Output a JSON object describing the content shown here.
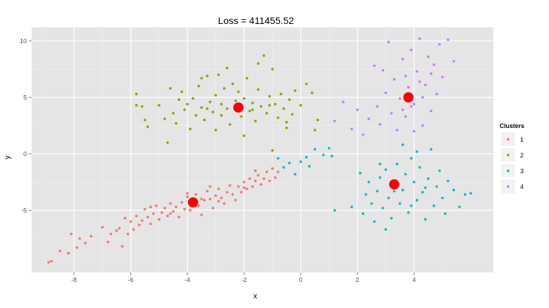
{
  "chart_data": {
    "type": "scatter",
    "title": "Loss = 411455.52",
    "xlabel": "x",
    "ylabel": "y",
    "xlim": [
      -9.5,
      6.8
    ],
    "ylim": [
      -10.5,
      11.2
    ],
    "x_ticks": [
      -8,
      -6,
      -4,
      -2,
      0,
      2,
      4
    ],
    "x_tick_labels": [
      "-8",
      "-6",
      "-4",
      "-2",
      "0",
      "2",
      "4"
    ],
    "y_ticks": [
      -5,
      0,
      5,
      10
    ],
    "y_tick_labels": [
      "-5",
      "0",
      "5",
      "10"
    ],
    "grid": true,
    "legend": {
      "title": "Clusters",
      "position": "right",
      "entries": [
        "1",
        "2",
        "3",
        "4"
      ]
    },
    "colors": {
      "1": "#F8766D",
      "2": "#7CAE00",
      "3": "#00BFC4",
      "4": "#C77CFF",
      "centroid": "#FF0000",
      "panel": "#E5E5E5",
      "grid": "#FFFFFF"
    },
    "centroids": [
      {
        "cluster": "1",
        "x": -3.8,
        "y": -4.3
      },
      {
        "cluster": "2",
        "x": -2.2,
        "y": 4.1
      },
      {
        "cluster": "3",
        "x": 3.3,
        "y": -2.7
      },
      {
        "cluster": "4",
        "x": 3.8,
        "y": 5.0
      }
    ],
    "series": [
      {
        "name": "1",
        "points": [
          [
            -8.9,
            -9.6
          ],
          [
            -8.8,
            -9.5
          ],
          [
            -8.5,
            -8.6
          ],
          [
            -8.2,
            -8.8
          ],
          [
            -8.1,
            -7.1
          ],
          [
            -7.9,
            -8.3
          ],
          [
            -7.8,
            -7.5
          ],
          [
            -7.6,
            -7.9
          ],
          [
            -7.4,
            -7.3
          ],
          [
            -7.0,
            -6.5
          ],
          [
            -6.8,
            -7.8
          ],
          [
            -6.7,
            -7.1
          ],
          [
            -6.5,
            -6.8
          ],
          [
            -6.4,
            -6.6
          ],
          [
            -6.3,
            -8.2
          ],
          [
            -6.2,
            -5.7
          ],
          [
            -6.1,
            -7.1
          ],
          [
            -6.0,
            -6.0
          ],
          [
            -5.9,
            -6.7
          ],
          [
            -5.8,
            -5.5
          ],
          [
            -5.7,
            -6.3
          ],
          [
            -5.6,
            -5.9
          ],
          [
            -5.5,
            -4.9
          ],
          [
            -5.4,
            -5.6
          ],
          [
            -5.3,
            -6.2
          ],
          [
            -5.2,
            -5.3
          ],
          [
            -5.1,
            -4.6
          ],
          [
            -5.0,
            -5.8
          ],
          [
            -4.9,
            -5.2
          ],
          [
            -4.8,
            -4.8
          ],
          [
            -4.7,
            -5.5
          ],
          [
            -4.6,
            -4.4
          ],
          [
            -4.5,
            -5.1
          ],
          [
            -4.4,
            -4.7
          ],
          [
            -4.3,
            -5.6
          ],
          [
            -4.2,
            -4.3
          ],
          [
            -4.1,
            -4.9
          ],
          [
            -4.0,
            -3.8
          ],
          [
            -3.9,
            -5.0
          ],
          [
            -3.8,
            -4.5
          ],
          [
            -3.7,
            -3.6
          ],
          [
            -3.6,
            -4.6
          ],
          [
            -3.5,
            -5.4
          ],
          [
            -3.4,
            -4.1
          ],
          [
            -3.3,
            -3.3
          ],
          [
            -3.2,
            -4.0
          ],
          [
            -3.1,
            -4.8
          ],
          [
            -3.0,
            -3.7
          ],
          [
            -2.9,
            -3.1
          ],
          [
            -2.8,
            -3.9
          ],
          [
            -2.7,
            -4.4
          ],
          [
            -2.6,
            -3.4
          ],
          [
            -2.5,
            -2.8
          ],
          [
            -2.4,
            -3.6
          ],
          [
            -2.3,
            -4.1
          ],
          [
            -2.2,
            -2.9
          ],
          [
            -2.1,
            -3.4
          ],
          [
            -2.0,
            -2.5
          ],
          [
            -1.9,
            -3.1
          ],
          [
            -1.8,
            -2.2
          ],
          [
            -1.7,
            -2.9
          ],
          [
            -1.6,
            -2.4
          ],
          [
            -1.5,
            -1.9
          ],
          [
            -1.4,
            -2.7
          ],
          [
            -1.3,
            -2.2
          ],
          [
            -1.2,
            -1.6
          ],
          [
            -1.1,
            -2.4
          ],
          [
            -1.0,
            -1.3
          ],
          [
            -0.9,
            -2.1
          ],
          [
            -0.8,
            -1.6
          ],
          [
            -3.5,
            -4.0
          ],
          [
            -2.9,
            -4.2
          ],
          [
            -4.6,
            -5.3
          ],
          [
            -5.3,
            -4.7
          ],
          [
            -2.0,
            -3.0
          ],
          [
            -1.6,
            -1.5
          ],
          [
            -4.0,
            -3.5
          ],
          [
            -3.2,
            -2.9
          ]
        ]
      },
      {
        "name": "2",
        "points": [
          [
            -5.8,
            5.3
          ],
          [
            -5.8,
            4.3
          ],
          [
            -5.6,
            4.2
          ],
          [
            -5.5,
            3.0
          ],
          [
            -5.4,
            2.4
          ],
          [
            -5.0,
            4.3
          ],
          [
            -4.8,
            3.1
          ],
          [
            -4.6,
            5.8
          ],
          [
            -4.5,
            3.6
          ],
          [
            -4.4,
            2.7
          ],
          [
            -4.3,
            4.8
          ],
          [
            -4.2,
            5.5
          ],
          [
            -4.1,
            3.9
          ],
          [
            -4.0,
            4.4
          ],
          [
            -3.9,
            2.2
          ],
          [
            -3.8,
            4.9
          ],
          [
            -3.7,
            3.4
          ],
          [
            -3.6,
            6.0
          ],
          [
            -3.5,
            4.1
          ],
          [
            -3.4,
            3.0
          ],
          [
            -3.3,
            6.9
          ],
          [
            -3.2,
            4.6
          ],
          [
            -3.1,
            3.7
          ],
          [
            -3.0,
            5.2
          ],
          [
            -2.9,
            7.0
          ],
          [
            -2.8,
            3.4
          ],
          [
            -2.7,
            5.8
          ],
          [
            -2.6,
            4.0
          ],
          [
            -2.5,
            2.6
          ],
          [
            -2.4,
            6.2
          ],
          [
            -2.3,
            4.7
          ],
          [
            -2.2,
            5.5
          ],
          [
            -2.1,
            3.3
          ],
          [
            -2.0,
            4.9
          ],
          [
            -1.9,
            6.7
          ],
          [
            -1.8,
            3.8
          ],
          [
            -1.7,
            4.5
          ],
          [
            -1.6,
            2.9
          ],
          [
            -1.5,
            5.7
          ],
          [
            -1.4,
            4.2
          ],
          [
            -1.3,
            8.7
          ],
          [
            -1.2,
            3.6
          ],
          [
            -1.1,
            5.1
          ],
          [
            -1.0,
            7.5
          ],
          [
            -0.9,
            4.4
          ],
          [
            -0.8,
            3.2
          ],
          [
            -0.7,
            5.3
          ],
          [
            -0.6,
            4.0
          ],
          [
            -0.5,
            2.8
          ],
          [
            -0.4,
            4.8
          ],
          [
            -0.3,
            3.5
          ],
          [
            -0.2,
            5.6
          ],
          [
            0.0,
            4.3
          ],
          [
            0.2,
            6.2
          ],
          [
            0.4,
            5.4
          ],
          [
            0.6,
            3.0
          ],
          [
            -2.6,
            7.6
          ],
          [
            -3.5,
            6.7
          ],
          [
            -1.5,
            8.0
          ],
          [
            -2.0,
            1.6
          ],
          [
            -3.0,
            2.1
          ],
          [
            -4.7,
            1.0
          ],
          [
            -1.0,
            0.3
          ],
          [
            -0.5,
            2.3
          ],
          [
            -2.3,
            4.1
          ],
          [
            -1.7,
            3.9
          ],
          [
            -2.8,
            4.4
          ],
          [
            -3.3,
            4.0
          ],
          [
            -1.1,
            4.3
          ],
          [
            0.5,
            2.1
          ]
        ]
      },
      {
        "name": "3",
        "points": [
          [
            -0.8,
            -0.4
          ],
          [
            -0.6,
            -1.2
          ],
          [
            -0.4,
            -0.8
          ],
          [
            -0.2,
            -1.8
          ],
          [
            0.0,
            -0.7
          ],
          [
            0.2,
            -0.3
          ],
          [
            0.3,
            -1.1
          ],
          [
            0.5,
            0.4
          ],
          [
            0.8,
            -0.1
          ],
          [
            1.0,
            0.5
          ],
          [
            1.1,
            -0.2
          ],
          [
            1.2,
            -5.0
          ],
          [
            1.8,
            -4.7
          ],
          [
            2.1,
            -1.7
          ],
          [
            2.2,
            -5.3
          ],
          [
            2.3,
            -3.6
          ],
          [
            2.4,
            -2.5
          ],
          [
            2.5,
            -4.4
          ],
          [
            2.6,
            -6.0
          ],
          [
            2.7,
            -3.3
          ],
          [
            2.8,
            -2.1
          ],
          [
            2.9,
            -4.8
          ],
          [
            3.0,
            -1.4
          ],
          [
            3.1,
            -3.9
          ],
          [
            3.2,
            -5.7
          ],
          [
            3.3,
            -2.9
          ],
          [
            3.4,
            -0.9
          ],
          [
            3.5,
            -4.4
          ],
          [
            3.6,
            -3.2
          ],
          [
            3.7,
            -1.8
          ],
          [
            3.8,
            -5.2
          ],
          [
            3.9,
            -0.4
          ],
          [
            4.0,
            -2.5
          ],
          [
            4.1,
            -4.1
          ],
          [
            4.2,
            -1.2
          ],
          [
            4.3,
            -3.4
          ],
          [
            4.4,
            -5.8
          ],
          [
            4.5,
            -2.2
          ],
          [
            4.6,
            0.4
          ],
          [
            4.7,
            -4.6
          ],
          [
            4.8,
            -2.9
          ],
          [
            4.9,
            -1.5
          ],
          [
            5.0,
            -3.9
          ],
          [
            5.1,
            -5.3
          ],
          [
            5.2,
            -2.4
          ],
          [
            5.4,
            -3.2
          ],
          [
            5.6,
            -4.7
          ],
          [
            5.8,
            -3.6
          ],
          [
            6.0,
            -3.5
          ],
          [
            3.0,
            -6.7
          ],
          [
            3.6,
            0.8
          ],
          [
            4.1,
            0.2
          ],
          [
            2.8,
            -0.9
          ],
          [
            3.3,
            -3.3
          ],
          [
            4.4,
            -3.0
          ],
          [
            3.9,
            -4.6
          ]
        ]
      },
      {
        "name": "4",
        "points": [
          [
            1.2,
            2.9
          ],
          [
            1.5,
            4.6
          ],
          [
            1.8,
            2.2
          ],
          [
            2.0,
            3.9
          ],
          [
            2.2,
            1.7
          ],
          [
            2.4,
            3.1
          ],
          [
            2.6,
            7.8
          ],
          [
            2.7,
            4.2
          ],
          [
            2.8,
            2.6
          ],
          [
            2.9,
            7.4
          ],
          [
            3.0,
            5.4
          ],
          [
            3.1,
            9.9
          ],
          [
            3.2,
            3.6
          ],
          [
            3.3,
            6.6
          ],
          [
            3.4,
            2.1
          ],
          [
            3.5,
            4.9
          ],
          [
            3.6,
            8.4
          ],
          [
            3.7,
            3.3
          ],
          [
            3.8,
            5.9
          ],
          [
            3.9,
            9.2
          ],
          [
            4.0,
            4.4
          ],
          [
            4.1,
            7.3
          ],
          [
            4.2,
            10.2
          ],
          [
            4.3,
            2.5
          ],
          [
            4.4,
            6.1
          ],
          [
            4.5,
            8.6
          ],
          [
            4.6,
            3.8
          ],
          [
            4.7,
            7.9
          ],
          [
            4.8,
            5.3
          ],
          [
            4.9,
            9.7
          ],
          [
            5.0,
            6.8
          ],
          [
            5.2,
            10.1
          ],
          [
            5.4,
            8.2
          ],
          [
            3.9,
            4.2
          ],
          [
            4.0,
            2.0
          ],
          [
            3.7,
            6.9
          ],
          [
            4.3,
            5.0
          ],
          [
            3.6,
            3.9
          ],
          [
            4.2,
            6.4
          ],
          [
            4.6,
            7.1
          ]
        ]
      }
    ]
  }
}
